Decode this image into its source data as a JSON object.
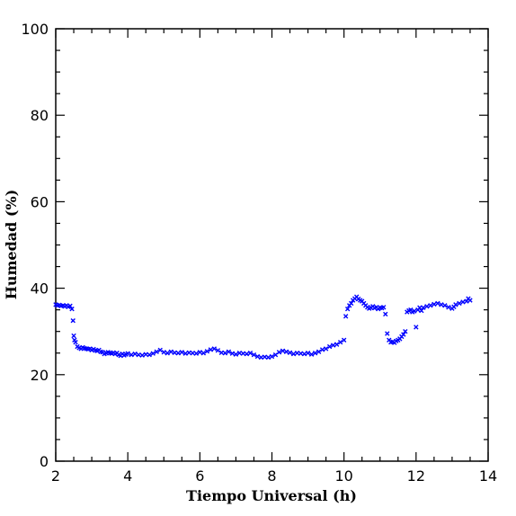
{
  "chart_data": {
    "type": "scatter",
    "xlabel": "Tiempo Universal (h)",
    "ylabel": "Humedad (%)",
    "xlim": [
      2,
      14
    ],
    "ylim": [
      0,
      100
    ],
    "x_ticks": [
      2,
      4,
      6,
      8,
      10,
      12,
      14
    ],
    "y_ticks": [
      0,
      20,
      40,
      60,
      80,
      100
    ],
    "grid": false,
    "legend": "none",
    "marker": "x",
    "marker_color": "#0000ff",
    "series": [
      {
        "points": [
          [
            2.0,
            36.2
          ],
          [
            2.05,
            36.0
          ],
          [
            2.1,
            36.1
          ],
          [
            2.15,
            35.9
          ],
          [
            2.2,
            36.0
          ],
          [
            2.25,
            35.8
          ],
          [
            2.3,
            36.0
          ],
          [
            2.35,
            35.7
          ],
          [
            2.4,
            35.9
          ],
          [
            2.45,
            35.2
          ],
          [
            2.48,
            32.5
          ],
          [
            2.5,
            29.0
          ],
          [
            2.52,
            28.0
          ],
          [
            2.55,
            27.5
          ],
          [
            2.6,
            26.5
          ],
          [
            2.65,
            26.2
          ],
          [
            2.7,
            26.0
          ],
          [
            2.75,
            26.3
          ],
          [
            2.8,
            26.1
          ],
          [
            2.85,
            26.0
          ],
          [
            2.9,
            25.9
          ],
          [
            2.95,
            26.0
          ],
          [
            3.0,
            25.7
          ],
          [
            3.05,
            25.9
          ],
          [
            3.1,
            25.6
          ],
          [
            3.15,
            25.5
          ],
          [
            3.2,
            25.7
          ],
          [
            3.25,
            25.3
          ],
          [
            3.3,
            25.2
          ],
          [
            3.35,
            24.8
          ],
          [
            3.4,
            25.0
          ],
          [
            3.45,
            25.2
          ],
          [
            3.5,
            25.0
          ],
          [
            3.55,
            24.9
          ],
          [
            3.6,
            25.1
          ],
          [
            3.65,
            24.8
          ],
          [
            3.7,
            25.0
          ],
          [
            3.75,
            24.6
          ],
          [
            3.8,
            24.4
          ],
          [
            3.85,
            24.8
          ],
          [
            3.9,
            24.5
          ],
          [
            3.95,
            24.7
          ],
          [
            4.0,
            24.9
          ],
          [
            4.1,
            24.6
          ],
          [
            4.2,
            24.8
          ],
          [
            4.3,
            24.6
          ],
          [
            4.4,
            24.5
          ],
          [
            4.5,
            24.7
          ],
          [
            4.6,
            24.6
          ],
          [
            4.7,
            24.9
          ],
          [
            4.8,
            25.3
          ],
          [
            4.9,
            25.7
          ],
          [
            5.0,
            25.2
          ],
          [
            5.1,
            25.0
          ],
          [
            5.2,
            25.3
          ],
          [
            5.3,
            25.1
          ],
          [
            5.4,
            25.0
          ],
          [
            5.5,
            25.2
          ],
          [
            5.6,
            24.9
          ],
          [
            5.7,
            25.1
          ],
          [
            5.8,
            25.0
          ],
          [
            5.9,
            24.9
          ],
          [
            6.0,
            25.2
          ],
          [
            6.1,
            25.0
          ],
          [
            6.2,
            25.4
          ],
          [
            6.3,
            25.8
          ],
          [
            6.4,
            26.0
          ],
          [
            6.5,
            25.6
          ],
          [
            6.6,
            25.1
          ],
          [
            6.7,
            25.0
          ],
          [
            6.8,
            25.3
          ],
          [
            6.9,
            24.9
          ],
          [
            7.0,
            24.7
          ],
          [
            7.1,
            25.0
          ],
          [
            7.2,
            24.9
          ],
          [
            7.3,
            24.8
          ],
          [
            7.4,
            25.0
          ],
          [
            7.5,
            24.6
          ],
          [
            7.6,
            24.2
          ],
          [
            7.7,
            24.0
          ],
          [
            7.8,
            24.1
          ],
          [
            7.9,
            24.0
          ],
          [
            8.0,
            24.2
          ],
          [
            8.1,
            24.6
          ],
          [
            8.2,
            25.2
          ],
          [
            8.3,
            25.5
          ],
          [
            8.4,
            25.3
          ],
          [
            8.5,
            25.1
          ],
          [
            8.6,
            24.8
          ],
          [
            8.7,
            25.0
          ],
          [
            8.8,
            24.9
          ],
          [
            8.9,
            24.8
          ],
          [
            9.0,
            25.0
          ],
          [
            9.1,
            24.7
          ],
          [
            9.2,
            25.0
          ],
          [
            9.3,
            25.3
          ],
          [
            9.4,
            25.8
          ],
          [
            9.5,
            26.0
          ],
          [
            9.6,
            26.5
          ],
          [
            9.7,
            26.8
          ],
          [
            9.8,
            27.0
          ],
          [
            9.9,
            27.5
          ],
          [
            10.0,
            28.0
          ],
          [
            10.05,
            33.5
          ],
          [
            10.1,
            35.2
          ],
          [
            10.15,
            36.0
          ],
          [
            10.2,
            36.5
          ],
          [
            10.25,
            37.2
          ],
          [
            10.3,
            37.6
          ],
          [
            10.35,
            38.0
          ],
          [
            10.4,
            37.5
          ],
          [
            10.45,
            37.2
          ],
          [
            10.5,
            37.0
          ],
          [
            10.55,
            36.5
          ],
          [
            10.6,
            36.0
          ],
          [
            10.65,
            35.6
          ],
          [
            10.7,
            35.3
          ],
          [
            10.75,
            35.5
          ],
          [
            10.8,
            35.8
          ],
          [
            10.85,
            35.4
          ],
          [
            10.9,
            35.6
          ],
          [
            10.95,
            35.2
          ],
          [
            11.0,
            35.5
          ],
          [
            11.05,
            35.4
          ],
          [
            11.1,
            35.6
          ],
          [
            11.15,
            34.0
          ],
          [
            11.2,
            29.5
          ],
          [
            11.25,
            28.0
          ],
          [
            11.3,
            27.5
          ],
          [
            11.35,
            27.6
          ],
          [
            11.4,
            27.4
          ],
          [
            11.45,
            27.8
          ],
          [
            11.5,
            28.0
          ],
          [
            11.55,
            28.3
          ],
          [
            11.6,
            28.8
          ],
          [
            11.65,
            29.3
          ],
          [
            11.7,
            30.0
          ],
          [
            11.75,
            34.5
          ],
          [
            11.8,
            34.8
          ],
          [
            11.85,
            35.0
          ],
          [
            11.9,
            34.5
          ],
          [
            11.95,
            34.7
          ],
          [
            12.0,
            31.0
          ],
          [
            12.05,
            35.0
          ],
          [
            12.1,
            35.5
          ],
          [
            12.15,
            34.8
          ],
          [
            12.2,
            35.5
          ],
          [
            12.3,
            35.8
          ],
          [
            12.4,
            36.0
          ],
          [
            12.5,
            36.3
          ],
          [
            12.6,
            36.5
          ],
          [
            12.7,
            36.2
          ],
          [
            12.8,
            36.0
          ],
          [
            12.9,
            35.6
          ],
          [
            13.0,
            35.3
          ],
          [
            13.05,
            35.7
          ],
          [
            13.1,
            36.2
          ],
          [
            13.2,
            36.5
          ],
          [
            13.3,
            36.8
          ],
          [
            13.4,
            37.0
          ],
          [
            13.45,
            37.6
          ],
          [
            13.5,
            37.2
          ]
        ]
      }
    ]
  }
}
